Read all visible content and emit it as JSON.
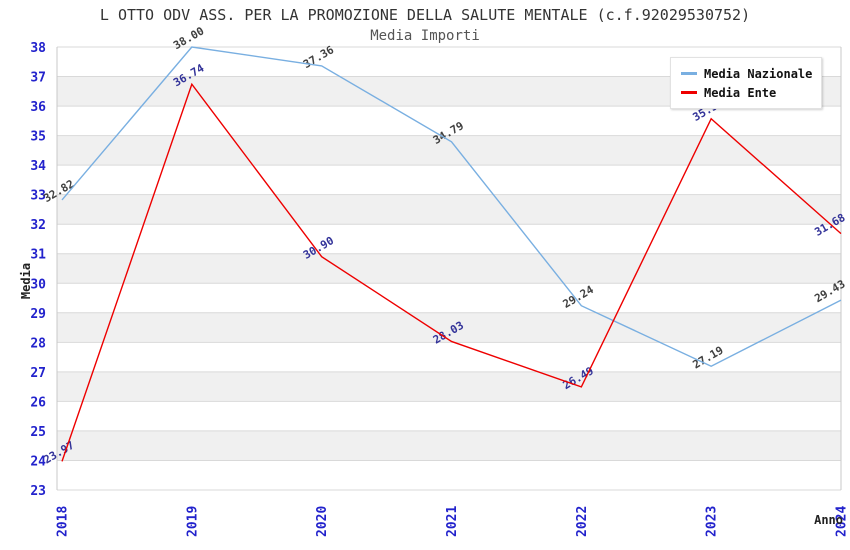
{
  "title": "L OTTO ODV ASS. PER LA PROMOZIONE DELLA SALUTE MENTALE (c.f.92029530752)",
  "subtitle": "Media Importi",
  "legend": {
    "items": [
      {
        "label": "Media Nazionale",
        "color": "#79afe1"
      },
      {
        "label": "Media Ente",
        "color": "#ee0000"
      }
    ]
  },
  "axes": {
    "y_label": "Media",
    "x_label": "Anno",
    "tick_color": "#2222cc",
    "y_ticks": [
      23,
      24,
      25,
      26,
      27,
      28,
      29,
      30,
      31,
      32,
      33,
      34,
      35,
      36,
      37,
      38
    ],
    "x_ticks": [
      "2018",
      "2019",
      "2020",
      "2021",
      "2022",
      "2023",
      "2024"
    ]
  },
  "colors": {
    "band": "#f0f0f0",
    "grid": "#d9d9d9",
    "plot_border": "#c9c9c9",
    "nazionale_line": "#79afe1",
    "ente_line": "#ee0000",
    "nazionale_label": "#404040",
    "ente_label": "#333399"
  },
  "chart_data": {
    "type": "line",
    "title": "L OTTO ODV ASS. PER LA PROMOZIONE DELLA SALUTE MENTALE (c.f.92029530752)",
    "subtitle": "Media Importi",
    "x": [
      2018,
      2019,
      2020,
      2021,
      2022,
      2023,
      2024
    ],
    "series": [
      {
        "name": "Media Nazionale",
        "color": "#79afe1",
        "label_color": "#404040",
        "values": [
          32.82,
          38.0,
          37.36,
          34.79,
          29.24,
          27.19,
          29.43
        ],
        "labels": [
          "32.82",
          "38.00",
          "37.36",
          "34.79",
          "29.24",
          "27.19",
          "29.43"
        ]
      },
      {
        "name": "Media Ente",
        "color": "#ee0000",
        "label_color": "#333399",
        "values": [
          23.97,
          36.74,
          30.9,
          28.03,
          26.49,
          35.57,
          31.68
        ],
        "labels": [
          "23.97",
          "36.74",
          "30.90",
          "28.03",
          "26.49",
          "35.57",
          "31.68"
        ]
      }
    ],
    "xlabel": "Anno",
    "ylabel": "Media",
    "ylim": [
      23,
      38
    ],
    "grid": "horizontal gridlines each integer, alternating light-gray bands",
    "legend_position": "top-right"
  }
}
